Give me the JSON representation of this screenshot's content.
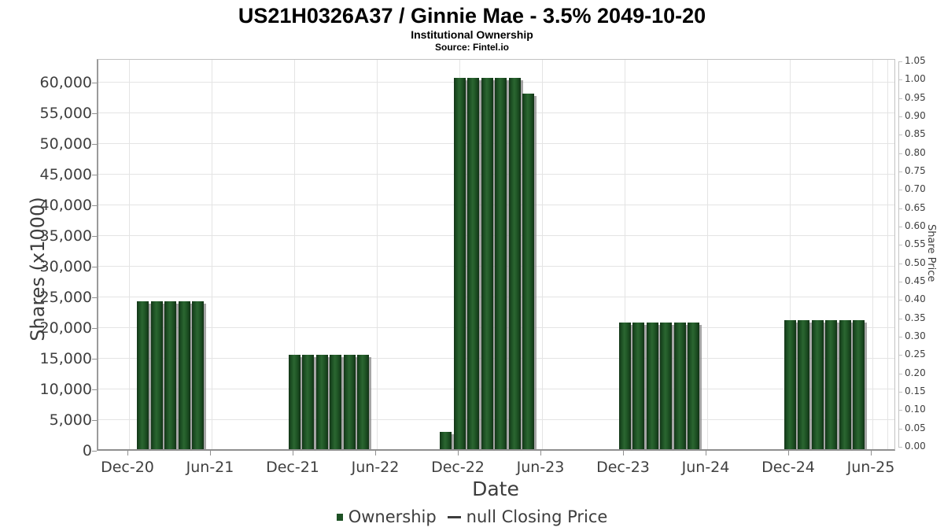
{
  "header": {
    "title": "US21H0326A37 / Ginnie Mae - 3.5% 2049-10-20",
    "subtitle": "Institutional Ownership",
    "source": "Source: Fintel.io"
  },
  "chart_data": {
    "type": "bar",
    "title": "US21H0326A37 / Ginnie Mae - 3.5% 2049-10-20",
    "subtitle": "Institutional Ownership",
    "source": "Source: Fintel.io",
    "xlabel": "Date",
    "ylabel": "Shares (x1000)",
    "y2label": "Share Price",
    "grid": true,
    "legend_position": "bottom",
    "bar_color": "#1d5124",
    "shadow_color": "#9b9b9b",
    "x_ticks": [
      "Dec-20",
      "Jun-21",
      "Dec-21",
      "Jun-22",
      "Dec-22",
      "Jun-23",
      "Dec-23",
      "Jun-24",
      "Dec-24",
      "Jun-25"
    ],
    "y_ticks": [
      "0",
      "5,000",
      "10,000",
      "15,000",
      "20,000",
      "25,000",
      "30,000",
      "35,000",
      "40,000",
      "45,000",
      "50,000",
      "55,000",
      "60,000"
    ],
    "y2_ticks": [
      "0.00",
      "0.05",
      "0.10",
      "0.15",
      "0.20",
      "0.25",
      "0.30",
      "0.35",
      "0.40",
      "0.45",
      "0.50",
      "0.55",
      "0.60",
      "0.65",
      "0.70",
      "0.75",
      "0.80",
      "0.85",
      "0.90",
      "0.95",
      "1.00",
      "1.05"
    ],
    "ylim": [
      0,
      63900
    ],
    "y2lim": [
      0,
      1.05
    ],
    "legend": [
      {
        "label": "Ownership",
        "marker": "square",
        "color": "#1d5124"
      },
      {
        "label": "null Closing Price",
        "marker": "line",
        "color": "#3d3d3d"
      }
    ],
    "series": [
      {
        "name": "Ownership",
        "axis": "left",
        "units": "shares x1000",
        "points": [
          {
            "x": "Jan-21",
            "y": 24100
          },
          {
            "x": "Feb-21",
            "y": 24100
          },
          {
            "x": "Mar-21",
            "y": 24100
          },
          {
            "x": "Apr-21",
            "y": 24100
          },
          {
            "x": "May-21",
            "y": 24100
          },
          {
            "x": "Dec-21",
            "y": 15400
          },
          {
            "x": "Jan-22",
            "y": 15400
          },
          {
            "x": "Feb-22",
            "y": 15400
          },
          {
            "x": "Mar-22",
            "y": 15400
          },
          {
            "x": "Apr-22",
            "y": 15400
          },
          {
            "x": "May-22",
            "y": 15400
          },
          {
            "x": "Nov-22",
            "y": 2800
          },
          {
            "x": "Dec-22",
            "y": 60600
          },
          {
            "x": "Jan-23",
            "y": 60600
          },
          {
            "x": "Feb-23",
            "y": 60600
          },
          {
            "x": "Mar-23",
            "y": 60600
          },
          {
            "x": "Apr-23",
            "y": 60600
          },
          {
            "x": "May-23",
            "y": 58000
          },
          {
            "x": "Dec-23",
            "y": 20650
          },
          {
            "x": "Jan-24",
            "y": 20650
          },
          {
            "x": "Feb-24",
            "y": 20650
          },
          {
            "x": "Mar-24",
            "y": 20650
          },
          {
            "x": "Apr-24",
            "y": 20650
          },
          {
            "x": "May-24",
            "y": 20650
          },
          {
            "x": "Dec-24",
            "y": 21000
          },
          {
            "x": "Jan-25",
            "y": 21000
          },
          {
            "x": "Feb-25",
            "y": 21000
          },
          {
            "x": "Mar-25",
            "y": 21000
          },
          {
            "x": "Apr-25",
            "y": 21000
          },
          {
            "x": "May-25",
            "y": 21000
          }
        ]
      },
      {
        "name": "null Closing Price",
        "axis": "right",
        "points": []
      }
    ]
  }
}
